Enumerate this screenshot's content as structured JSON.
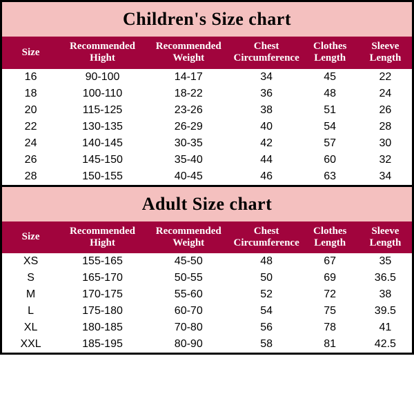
{
  "colors": {
    "title_bg": "#f4c0bf",
    "header_bg": "#a1043d",
    "header_fg": "#ffffff",
    "border": "#000000",
    "body_bg": "#ffffff",
    "text": "#000000"
  },
  "columns": [
    {
      "key": "size",
      "label": "Size",
      "width_pct": 14
    },
    {
      "key": "hight",
      "label": "Recommended Hight",
      "width_pct": 21
    },
    {
      "key": "weight",
      "label": "Recommended Weight",
      "width_pct": 21
    },
    {
      "key": "chest",
      "label": "Chest Circumference",
      "width_pct": 17
    },
    {
      "key": "clothes",
      "label": "Clothes Length",
      "width_pct": 14
    },
    {
      "key": "sleeve",
      "label": "Sleeve Length",
      "width_pct": 13
    }
  ],
  "tables": [
    {
      "title": "Children's Size chart",
      "rows": [
        [
          "16",
          "90-100",
          "14-17",
          "34",
          "45",
          "22"
        ],
        [
          "18",
          "100-110",
          "18-22",
          "36",
          "48",
          "24"
        ],
        [
          "20",
          "115-125",
          "23-26",
          "38",
          "51",
          "26"
        ],
        [
          "22",
          "130-135",
          "26-29",
          "40",
          "54",
          "28"
        ],
        [
          "24",
          "140-145",
          "30-35",
          "42",
          "57",
          "30"
        ],
        [
          "26",
          "145-150",
          "35-40",
          "44",
          "60",
          "32"
        ],
        [
          "28",
          "150-155",
          "40-45",
          "46",
          "63",
          "34"
        ]
      ]
    },
    {
      "title": "Adult Size chart",
      "rows": [
        [
          "XS",
          "155-165",
          "45-50",
          "48",
          "67",
          "35"
        ],
        [
          "S",
          "165-170",
          "50-55",
          "50",
          "69",
          "36.5"
        ],
        [
          "M",
          "170-175",
          "55-60",
          "52",
          "72",
          "38"
        ],
        [
          "L",
          "175-180",
          "60-70",
          "54",
          "75",
          "39.5"
        ],
        [
          "XL",
          "180-185",
          "70-80",
          "56",
          "78",
          "41"
        ],
        [
          "XXL",
          "185-195",
          "80-90",
          "58",
          "81",
          "42.5"
        ]
      ]
    }
  ]
}
